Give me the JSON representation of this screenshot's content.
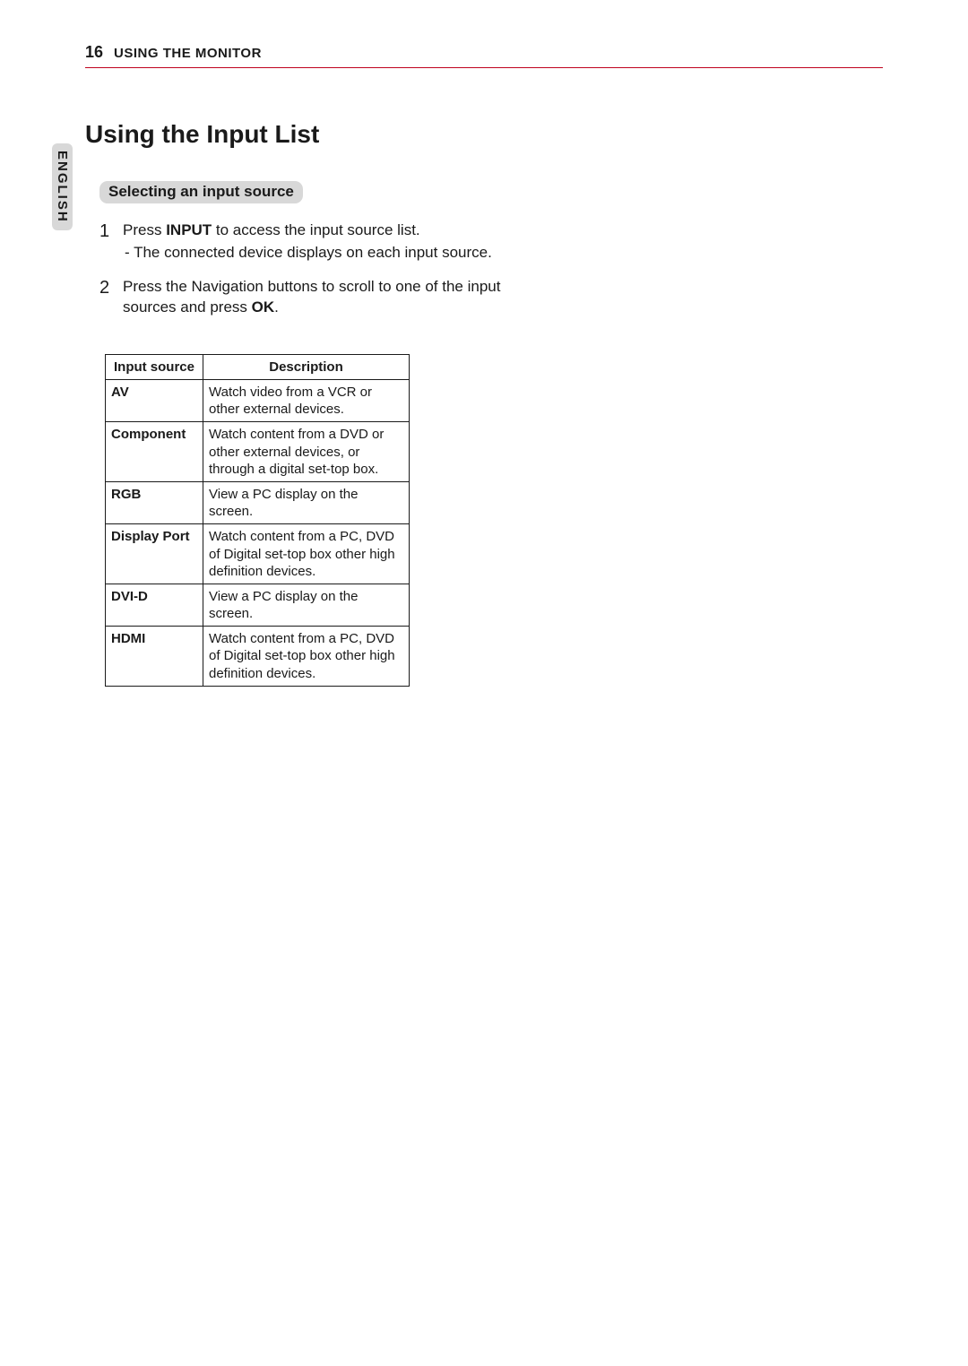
{
  "header": {
    "page_number": "16",
    "section": "USING THE MONITOR"
  },
  "language_tab": "ENGLISH",
  "title": "Using the Input List",
  "subheading": "Selecting an input source",
  "steps": [
    {
      "pre": "Press ",
      "bold": "INPUT",
      "post": " to access the input source list.",
      "sub": "- The connected device displays on each input source."
    },
    {
      "pre": "Press the Navigation buttons to scroll to one of the input sources and press ",
      "bold": "OK",
      "post": "."
    }
  ],
  "table": {
    "columns": [
      "Input source",
      "Description"
    ],
    "rows": [
      [
        "AV",
        "Watch video from a VCR or other external devices."
      ],
      [
        "Component",
        "Watch content from a DVD or other external devices, or through a digital set-top box."
      ],
      [
        "RGB",
        "View a PC display on the screen."
      ],
      [
        "Display Port",
        "Watch content from a PC, DVD of Digital set-top box other high definition devices."
      ],
      [
        "DVI-D",
        "View a PC display on the screen."
      ],
      [
        "HDMI",
        "Watch content from a PC, DVD of Digital set-top box other high definition devices."
      ]
    ]
  }
}
